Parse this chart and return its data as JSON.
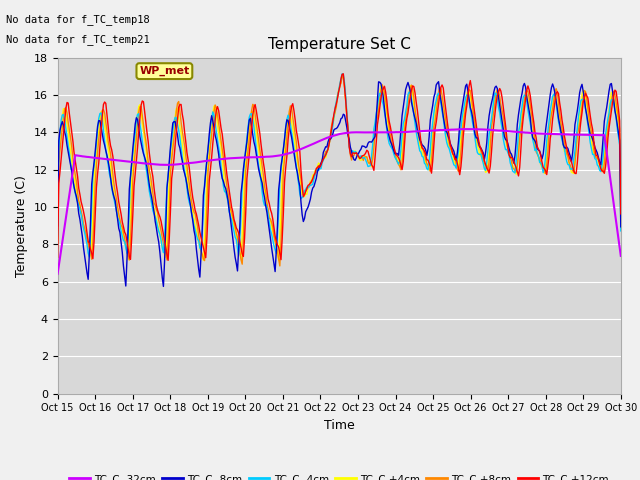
{
  "title": "Temperature Set C",
  "xlabel": "Time",
  "ylabel": "Temperature (C)",
  "ylim": [
    0,
    18
  ],
  "yticks": [
    0,
    2,
    4,
    6,
    8,
    10,
    12,
    14,
    16,
    18
  ],
  "fig_bg_color": "#f0f0f0",
  "plot_bg_color": "#d8d8d8",
  "grid_color": "#ffffff",
  "no_data_text": [
    "No data for f_TC_temp18",
    "No data for f_TC_temp21"
  ],
  "wp_met_label": "WP_met",
  "legend_entries": [
    "TC_C -32cm",
    "TC_C -8cm",
    "TC_C -4cm",
    "TC_C +4cm",
    "TC_C +8cm",
    "TC_C +12cm"
  ],
  "legend_colors": [
    "#cc00ff",
    "#0000cc",
    "#00ccff",
    "#ffff00",
    "#ff8800",
    "#ff0000"
  ],
  "xtick_labels": [
    "Oct 15",
    "Oct 16",
    "Oct 17",
    "Oct 18",
    "Oct 19",
    "Oct 20",
    "Oct 21",
    "Oct 22",
    "Oct 23",
    "Oct 24",
    "Oct 25",
    "Oct 26",
    "Oct 27",
    "Oct 28",
    "Oct 29",
    "Oct 30"
  ]
}
